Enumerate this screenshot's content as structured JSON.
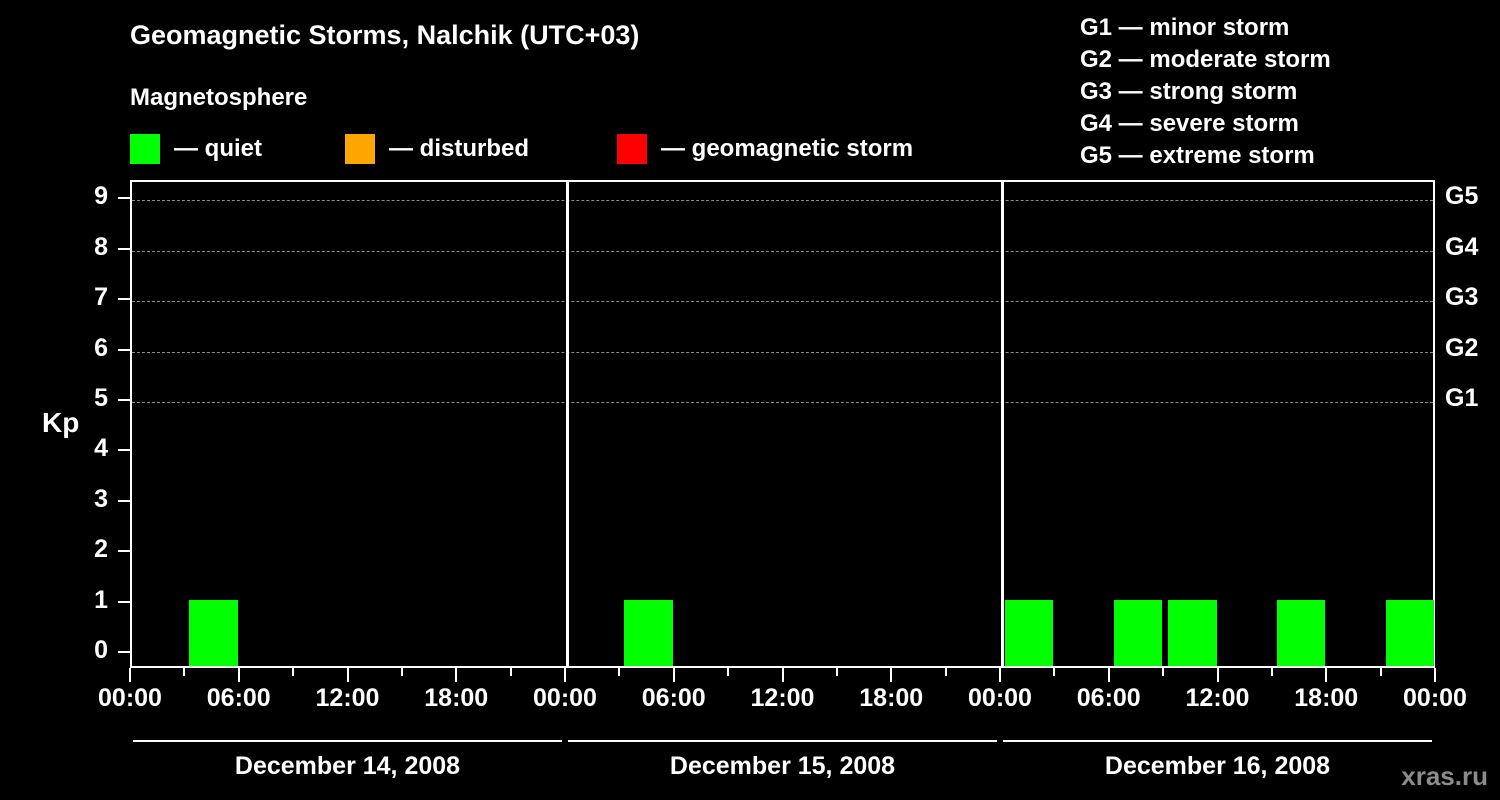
{
  "header": {
    "title": "Geomagnetic Storms, Nalchik (UTC+03)",
    "subtitle": "Magnetosphere"
  },
  "legend": {
    "items": [
      {
        "label": "— quiet",
        "color": "#00ff00"
      },
      {
        "label": "— disturbed",
        "color": "#ffa500"
      },
      {
        "label": "— geomagnetic storm",
        "color": "#ff0000"
      }
    ]
  },
  "storm_scale": {
    "items": [
      "G1 — minor storm",
      "G2 — moderate storm",
      "G3 — strong storm",
      "G4 — severe storm",
      "G5 — extreme storm"
    ]
  },
  "watermark": "xras.ru",
  "chart_data": {
    "type": "bar",
    "title": "Geomagnetic Storms, Nalchik (UTC+03)",
    "ylabel": "Kp",
    "ylim": [
      0,
      9
    ],
    "y_ticks": [
      0,
      1,
      2,
      3,
      4,
      5,
      6,
      7,
      8,
      9
    ],
    "grid_kp_levels": [
      5,
      6,
      7,
      8,
      9
    ],
    "right_axis": [
      {
        "label": "G1",
        "kp": 5
      },
      {
        "label": "G2",
        "kp": 6
      },
      {
        "label": "G3",
        "kp": 7
      },
      {
        "label": "G4",
        "kp": 8
      },
      {
        "label": "G5",
        "kp": 9
      }
    ],
    "interval_hours": 3,
    "x_tick_labels_per_day": [
      "00:00",
      "06:00",
      "12:00",
      "18:00"
    ],
    "x_axis_end_label": "00:00",
    "colors": {
      "quiet": "#00ff00",
      "disturbed": "#ffa500",
      "storm": "#ff0000"
    },
    "thresholds": {
      "quiet_max_kp": 3,
      "disturbed_max_kp": 4
    },
    "days": [
      {
        "date": "December 14, 2008",
        "kp": [
          0,
          1,
          0,
          0,
          0,
          0,
          0,
          0
        ]
      },
      {
        "date": "December 15, 2008",
        "kp": [
          0,
          1,
          0,
          0,
          0,
          0,
          0,
          0
        ]
      },
      {
        "date": "December 16, 2008",
        "kp": [
          1,
          0,
          1,
          1,
          0,
          1,
          0,
          1
        ]
      }
    ]
  }
}
